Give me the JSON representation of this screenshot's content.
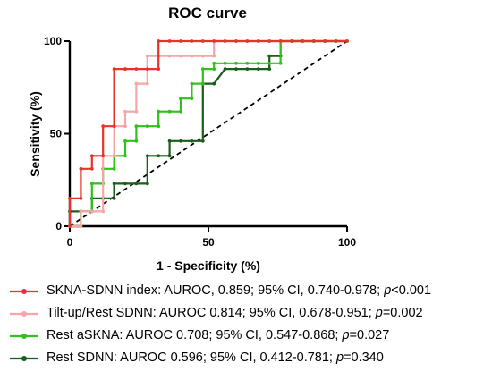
{
  "chart_data": {
    "type": "line",
    "title": "ROC curve",
    "xlabel": "1 - Specificity (%)",
    "ylabel": "Sensitivity (%)",
    "xlim": [
      0,
      100
    ],
    "ylim": [
      0,
      100
    ],
    "xticks": [
      "0",
      "50",
      "100"
    ],
    "yticks": [
      "0",
      "50",
      "100"
    ],
    "grid": false,
    "legend_position": "bottom",
    "reference_line": {
      "style": "dashed",
      "color": "#000000",
      "points": [
        [
          0,
          0
        ],
        [
          100,
          100
        ]
      ]
    },
    "series": [
      {
        "name": "SKNA-SDNN index",
        "legend_parts": [
          {
            "text": "SKNA-SDNN index: AUROC, 0.859; 95% CI, 0.740-0.978; "
          },
          {
            "text": "p",
            "italic": true
          },
          {
            "text": "<0.001"
          }
        ],
        "color": "#e8322b",
        "x": [
          0,
          0,
          4,
          4,
          8,
          8,
          12,
          12,
          16,
          16,
          20,
          20,
          24,
          28,
          32,
          32,
          36,
          40,
          44,
          48,
          52,
          56,
          60,
          64,
          68,
          72,
          76,
          80,
          84,
          88,
          92,
          96,
          100
        ],
        "y": [
          0,
          15,
          15,
          31,
          31,
          38,
          38,
          54,
          54,
          85,
          85,
          85,
          85,
          85,
          85,
          100,
          100,
          100,
          100,
          100,
          100,
          100,
          100,
          100,
          100,
          100,
          100,
          100,
          100,
          100,
          100,
          100,
          100
        ]
      },
      {
        "name": "Tilt-up/Rest SDNN",
        "legend_parts": [
          {
            "text": "Tilt-up/Rest SDNN: AUROC 0.814; 95% CI, 0.678-0.951; "
          },
          {
            "text": "p",
            "italic": true
          },
          {
            "text": "=0.002"
          }
        ],
        "color": "#f4a7a7",
        "x": [
          0,
          4,
          4,
          8,
          12,
          12,
          16,
          16,
          20,
          20,
          24,
          24,
          28,
          28,
          32,
          36,
          40,
          44,
          48,
          52,
          52,
          56,
          60,
          64,
          68,
          72,
          76,
          100
        ],
        "y": [
          0,
          0,
          8,
          8,
          8,
          38,
          38,
          54,
          54,
          62,
          62,
          77,
          77,
          92,
          92,
          92,
          92,
          92,
          92,
          92,
          100,
          100,
          100,
          100,
          100,
          100,
          100,
          100
        ]
      },
      {
        "name": "Rest aSKNA",
        "legend_parts": [
          {
            "text": "Rest aSKNA: AUROC 0.708; 95% CI, 0.547-0.868; "
          },
          {
            "text": "p",
            "italic": true
          },
          {
            "text": "=0.027"
          }
        ],
        "color": "#2fc21a",
        "x": [
          0,
          4,
          4,
          8,
          8,
          12,
          12,
          16,
          16,
          20,
          20,
          24,
          24,
          28,
          32,
          32,
          36,
          40,
          40,
          44,
          44,
          48,
          48,
          52,
          52,
          56,
          60,
          64,
          68,
          72,
          76,
          76,
          80,
          84,
          88,
          92,
          96,
          100
        ],
        "y": [
          0,
          0,
          8,
          8,
          23,
          23,
          31,
          31,
          38,
          38,
          46,
          46,
          54,
          54,
          54,
          62,
          62,
          62,
          69,
          69,
          77,
          77,
          85,
          85,
          88,
          88,
          88,
          88,
          88,
          88,
          88,
          100,
          100,
          100,
          100,
          100,
          100,
          100
        ]
      },
      {
        "name": "Rest SDNN",
        "legend_parts": [
          {
            "text": "Rest SDNN: AUROC 0.596; 95% CI, 0.412-0.781; "
          },
          {
            "text": "p",
            "italic": true
          },
          {
            "text": "=0.340"
          }
        ],
        "color": "#1a5e1a",
        "x": [
          0,
          0,
          4,
          8,
          8,
          12,
          16,
          16,
          20,
          24,
          28,
          28,
          32,
          36,
          36,
          40,
          44,
          48,
          48,
          52,
          56,
          60,
          64,
          68,
          72,
          72,
          76,
          76,
          80,
          84,
          88,
          92,
          96,
          100
        ],
        "y": [
          0,
          8,
          8,
          8,
          15,
          15,
          15,
          23,
          23,
          23,
          23,
          38,
          38,
          38,
          46,
          46,
          46,
          46,
          77,
          77,
          85,
          85,
          85,
          85,
          85,
          92,
          92,
          100,
          100,
          100,
          100,
          100,
          100,
          100
        ]
      }
    ]
  }
}
